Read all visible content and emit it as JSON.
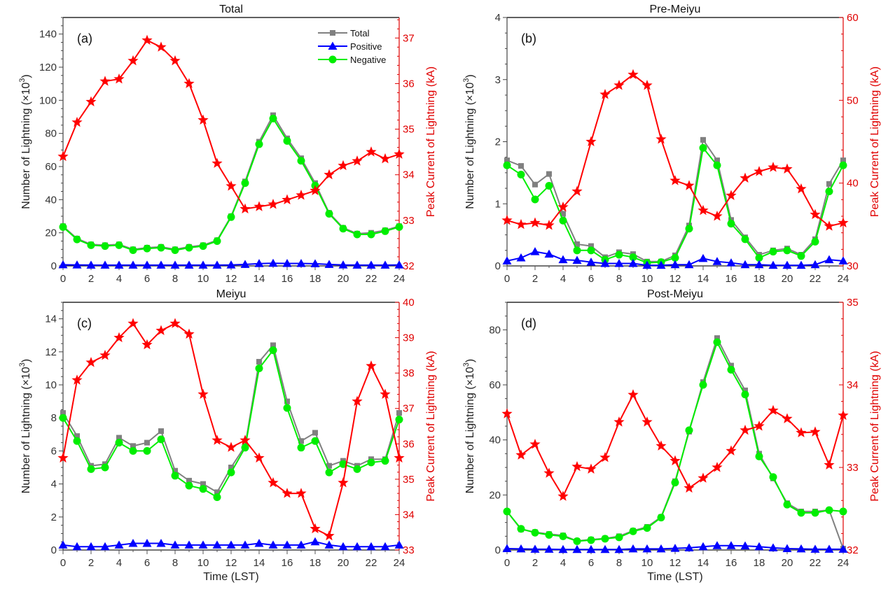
{
  "chart_data": [
    {
      "type": "line",
      "panel_letter": "(a)",
      "title": "Total",
      "xlabel": "",
      "ylabel": "Number of Lightning (×10³)",
      "y2label": "Peak Current of Lightning (kA)",
      "x": [
        0,
        1,
        2,
        3,
        4,
        5,
        6,
        7,
        8,
        9,
        10,
        11,
        12,
        13,
        14,
        15,
        16,
        17,
        18,
        19,
        20,
        21,
        22,
        23,
        24
      ],
      "xticks": [
        0,
        2,
        4,
        6,
        8,
        10,
        12,
        14,
        16,
        18,
        20,
        22,
        24
      ],
      "xlim": [
        0,
        24
      ],
      "ylim": [
        0,
        150
      ],
      "yticks": [
        0,
        20,
        40,
        60,
        80,
        100,
        120,
        140
      ],
      "y2lim": [
        32,
        37.45
      ],
      "y2ticks": [
        32,
        33,
        34,
        35,
        36,
        37
      ],
      "legend": {
        "position": "top-right",
        "entries": [
          "Total",
          "Positive",
          "Negative"
        ]
      },
      "series": [
        {
          "name": "Total",
          "axis": "left",
          "color": "#808080",
          "marker": "square",
          "values": [
            24,
            16.5,
            13,
            12.5,
            13,
            10,
            11,
            11.5,
            10,
            11.5,
            12.5,
            15.5,
            30,
            51,
            75,
            91,
            77,
            65,
            50,
            32,
            23,
            19.5,
            20,
            21.5,
            24
          ]
        },
        {
          "name": "Positive",
          "axis": "left",
          "color": "#0000ff",
          "marker": "triangle",
          "values": [
            0.7,
            0.6,
            0.5,
            0.5,
            0.5,
            0.5,
            0.5,
            0.5,
            0.5,
            0.5,
            0.5,
            0.5,
            0.6,
            0.9,
            1.4,
            1.6,
            1.5,
            1.5,
            1.3,
            0.9,
            0.6,
            0.5,
            0.5,
            0.5,
            0.6
          ]
        },
        {
          "name": "Negative",
          "axis": "left",
          "color": "#00ee00",
          "marker": "circle",
          "values": [
            23.5,
            16,
            12.5,
            12,
            12.5,
            9.5,
            10.5,
            11,
            9.5,
            11,
            12,
            15,
            29.5,
            50,
            73.5,
            89,
            75.5,
            63.5,
            48.5,
            31.5,
            22.5,
            19,
            19,
            21,
            23.5
          ]
        },
        {
          "name": "Peak Current",
          "axis": "right",
          "color": "#ff0000",
          "marker": "star",
          "values": [
            34.4,
            35.15,
            35.6,
            36.05,
            36.1,
            36.5,
            36.95,
            36.8,
            36.5,
            36.0,
            35.2,
            34.25,
            33.75,
            33.25,
            33.3,
            33.35,
            33.45,
            33.55,
            33.65,
            34.0,
            34.2,
            34.3,
            34.5,
            34.35,
            34.45
          ]
        }
      ]
    },
    {
      "type": "line",
      "panel_letter": "(b)",
      "title": "Pre-Meiyu",
      "xlabel": "",
      "ylabel": "Number of Lightning (×10³)",
      "y2label": "Peak Current of Lightning (kA)",
      "x": [
        0,
        1,
        2,
        3,
        4,
        5,
        6,
        7,
        8,
        9,
        10,
        11,
        12,
        13,
        14,
        15,
        16,
        17,
        18,
        19,
        20,
        21,
        22,
        23,
        24
      ],
      "xticks": [
        0,
        2,
        4,
        6,
        8,
        10,
        12,
        14,
        16,
        18,
        20,
        22,
        24
      ],
      "xlim": [
        0,
        24
      ],
      "ylim": [
        0,
        4
      ],
      "yticks": [
        0,
        1,
        2,
        3,
        4
      ],
      "y2lim": [
        30,
        60
      ],
      "y2ticks": [
        30,
        40,
        50,
        60
      ],
      "series": [
        {
          "name": "Total",
          "axis": "left",
          "color": "#808080",
          "marker": "square",
          "values": [
            1.7,
            1.61,
            1.31,
            1.48,
            0.84,
            0.35,
            0.32,
            0.14,
            0.22,
            0.19,
            0.07,
            0.07,
            0.17,
            0.65,
            2.03,
            1.7,
            0.74,
            0.46,
            0.18,
            0.25,
            0.28,
            0.18,
            0.43,
            1.32,
            1.7
          ]
        },
        {
          "name": "Positive",
          "axis": "left",
          "color": "#0000ff",
          "marker": "triangle",
          "values": [
            0.08,
            0.13,
            0.23,
            0.19,
            0.1,
            0.09,
            0.06,
            0.04,
            0.04,
            0.04,
            0.01,
            0.01,
            0.02,
            0.02,
            0.12,
            0.07,
            0.05,
            0.02,
            0.02,
            0.01,
            0.01,
            0.01,
            0.02,
            0.1,
            0.08
          ]
        },
        {
          "name": "Negative",
          "axis": "left",
          "color": "#00ee00",
          "marker": "circle",
          "values": [
            1.62,
            1.47,
            1.07,
            1.29,
            0.73,
            0.25,
            0.25,
            0.1,
            0.18,
            0.14,
            0.05,
            0.06,
            0.13,
            0.6,
            1.9,
            1.62,
            0.68,
            0.43,
            0.13,
            0.23,
            0.25,
            0.16,
            0.39,
            1.2,
            1.62
          ]
        },
        {
          "name": "Peak Current",
          "axis": "right",
          "color": "#ff0000",
          "marker": "star",
          "values": [
            35.5,
            35.0,
            35.2,
            34.9,
            37.1,
            39.0,
            45.0,
            50.7,
            51.8,
            53.1,
            51.8,
            45.3,
            40.3,
            39.7,
            36.7,
            36.0,
            38.5,
            40.6,
            41.4,
            41.9,
            41.7,
            39.3,
            36.2,
            34.8,
            35.2
          ]
        }
      ]
    },
    {
      "type": "line",
      "panel_letter": "(c)",
      "title": "Meiyu",
      "xlabel": "Time (LST)",
      "ylabel": "Number of Lightning (×10³)",
      "y2label": "Peak Current of Lightning (kA)",
      "x": [
        0,
        1,
        2,
        3,
        4,
        5,
        6,
        7,
        8,
        9,
        10,
        11,
        12,
        13,
        14,
        15,
        16,
        17,
        18,
        19,
        20,
        21,
        22,
        23,
        24
      ],
      "xticks": [
        0,
        2,
        4,
        6,
        8,
        10,
        12,
        14,
        16,
        18,
        20,
        22,
        24
      ],
      "xlim": [
        0,
        24
      ],
      "ylim": [
        0,
        15
      ],
      "yticks": [
        0,
        2,
        4,
        6,
        8,
        10,
        12,
        14
      ],
      "y2lim": [
        33,
        40
      ],
      "y2ticks": [
        33,
        34,
        35,
        36,
        37,
        38,
        39,
        40
      ],
      "series": [
        {
          "name": "Total",
          "axis": "left",
          "color": "#808080",
          "marker": "square",
          "values": [
            8.3,
            6.9,
            5.1,
            5.2,
            6.8,
            6.3,
            6.5,
            7.2,
            4.8,
            4.2,
            4.0,
            3.5,
            5.0,
            6.3,
            11.4,
            12.4,
            9.0,
            6.6,
            7.1,
            5.1,
            5.4,
            5.1,
            5.5,
            5.5,
            8.3
          ]
        },
        {
          "name": "Positive",
          "axis": "left",
          "color": "#0000ff",
          "marker": "triangle",
          "values": [
            0.3,
            0.2,
            0.2,
            0.2,
            0.3,
            0.4,
            0.4,
            0.4,
            0.3,
            0.3,
            0.3,
            0.3,
            0.3,
            0.3,
            0.4,
            0.3,
            0.3,
            0.3,
            0.5,
            0.3,
            0.2,
            0.2,
            0.2,
            0.2,
            0.3
          ]
        },
        {
          "name": "Negative",
          "axis": "left",
          "color": "#00ee00",
          "marker": "circle",
          "values": [
            8.0,
            6.6,
            4.9,
            5.0,
            6.5,
            6.0,
            6.0,
            6.7,
            4.5,
            3.9,
            3.7,
            3.2,
            4.7,
            6.2,
            11.0,
            12.1,
            8.6,
            6.2,
            6.6,
            4.7,
            5.2,
            4.9,
            5.3,
            5.4,
            7.9
          ]
        },
        {
          "name": "Peak Current",
          "axis": "right",
          "color": "#ff0000",
          "marker": "star",
          "values": [
            35.6,
            37.8,
            38.3,
            38.5,
            39.0,
            39.4,
            38.8,
            39.2,
            39.4,
            39.1,
            37.4,
            36.1,
            35.9,
            36.1,
            35.6,
            34.9,
            34.6,
            34.6,
            33.6,
            33.4,
            34.9,
            37.2,
            38.2,
            37.4,
            35.6
          ]
        }
      ]
    },
    {
      "type": "line",
      "panel_letter": "(d)",
      "title": "Post-Meiyu",
      "xlabel": "Time (LST)",
      "ylabel": "Number of Lightning (×10³)",
      "y2label": "Peak Current of Lightning (kA)",
      "x": [
        0,
        1,
        2,
        3,
        4,
        5,
        6,
        7,
        8,
        9,
        10,
        11,
        12,
        13,
        14,
        15,
        16,
        17,
        18,
        19,
        20,
        21,
        22,
        23,
        24
      ],
      "xticks": [
        0,
        2,
        4,
        6,
        8,
        10,
        12,
        14,
        16,
        18,
        20,
        22,
        24
      ],
      "xlim": [
        0,
        24
      ],
      "ylim": [
        0,
        90
      ],
      "yticks": [
        0,
        20,
        40,
        60,
        80
      ],
      "y2lim": [
        32,
        35
      ],
      "y2ticks": [
        32,
        33,
        34,
        35
      ],
      "series": [
        {
          "name": "Total",
          "axis": "left",
          "color": "#808080",
          "marker": "square",
          "values": [
            14,
            7.5,
            6.5,
            5.8,
            5.3,
            3.3,
            3.8,
            4.2,
            5,
            7,
            8.4,
            12,
            25,
            43,
            61,
            77,
            67,
            58,
            35,
            26,
            17,
            14,
            14,
            14.5,
            0.5
          ]
        },
        {
          "name": "Positive",
          "axis": "left",
          "color": "#0000ff",
          "marker": "triangle",
          "values": [
            0.5,
            0.4,
            0.3,
            0.3,
            0.2,
            0.2,
            0.2,
            0.2,
            0.2,
            0.4,
            0.4,
            0.4,
            0.6,
            0.8,
            1.2,
            1.6,
            1.6,
            1.5,
            1.2,
            0.8,
            0.5,
            0.4,
            0.3,
            0.3,
            0.3
          ]
        },
        {
          "name": "Negative",
          "axis": "left",
          "color": "#00ee00",
          "marker": "circle",
          "values": [
            14,
            7.7,
            6.3,
            5.5,
            5,
            3.2,
            3.6,
            4.1,
            4.6,
            6.8,
            8,
            11.8,
            24.5,
            43.5,
            60,
            75.5,
            65.5,
            56.5,
            34,
            26.5,
            16.5,
            13.5,
            13.5,
            14.5,
            14
          ]
        },
        {
          "name": "Peak Current",
          "axis": "right",
          "color": "#ff0000",
          "marker": "star",
          "values": [
            33.65,
            33.15,
            33.28,
            32.93,
            32.65,
            33.01,
            32.98,
            33.12,
            33.55,
            33.88,
            33.55,
            33.26,
            33.08,
            32.75,
            32.87,
            33.0,
            33.2,
            33.45,
            33.5,
            33.69,
            33.59,
            33.42,
            33.43,
            33.03,
            33.63
          ]
        }
      ]
    }
  ]
}
